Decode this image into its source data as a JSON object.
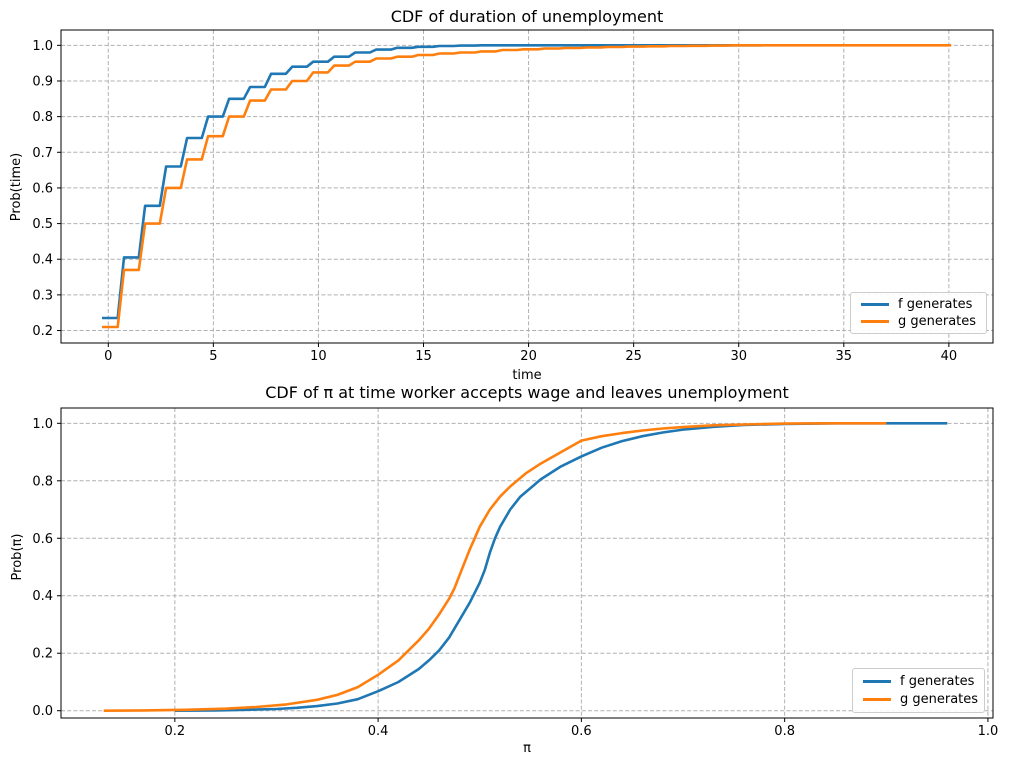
{
  "figure": {
    "background": "#ffffff",
    "grid_color": "#b0b0b0",
    "spine_color": "#000000",
    "text_color": "#000000",
    "series_colors": {
      "f": "#1f77b4",
      "g": "#ff7f0e"
    }
  },
  "chart_data": [
    {
      "type": "line",
      "line_style": "step",
      "title": "CDF of duration of unemployment",
      "xlabel": "time",
      "ylabel": "Prob(time)",
      "xlim": [
        -2.25,
        42.1
      ],
      "ylim": [
        0.165,
        1.043
      ],
      "xticks": [
        0,
        5,
        10,
        15,
        20,
        25,
        30,
        35,
        40
      ],
      "xtick_labels": [
        "0",
        "5",
        "10",
        "15",
        "20",
        "25",
        "30",
        "35",
        "40"
      ],
      "yticks": [
        0.2,
        0.3,
        0.4,
        0.5,
        0.6,
        0.7,
        0.8,
        0.9,
        1.0
      ],
      "ytick_labels": [
        "0.2",
        "0.3",
        "0.4",
        "0.5",
        "0.6",
        "0.7",
        "0.8",
        "0.9",
        "1.0"
      ],
      "grid": true,
      "legend_position": "lower right",
      "series": [
        {
          "name": "f generates",
          "color": "#1f77b4",
          "x": [
            0,
            1,
            2,
            3,
            4,
            5,
            6,
            7,
            8,
            9,
            10,
            11,
            12,
            13,
            14,
            15,
            16,
            17,
            18,
            19,
            20,
            21,
            22,
            23,
            24,
            25,
            26,
            27,
            28,
            29,
            30,
            31
          ],
          "y": [
            0.235,
            0.405,
            0.55,
            0.66,
            0.74,
            0.8,
            0.85,
            0.883,
            0.92,
            0.94,
            0.954,
            0.968,
            0.98,
            0.988,
            0.993,
            0.996,
            0.998,
            0.9993,
            1,
            1,
            1,
            1,
            1,
            1,
            1,
            1,
            1,
            1,
            1,
            1,
            1,
            1
          ]
        },
        {
          "name": "g generates",
          "color": "#ff7f0e",
          "x": [
            0,
            1,
            2,
            3,
            4,
            5,
            6,
            7,
            8,
            9,
            10,
            11,
            12,
            13,
            14,
            15,
            16,
            17,
            18,
            19,
            20,
            21,
            22,
            23,
            24,
            25,
            26,
            27,
            28,
            29,
            30,
            31,
            32,
            33,
            34,
            35,
            36,
            37,
            38,
            39,
            40
          ],
          "y": [
            0.21,
            0.37,
            0.5,
            0.6,
            0.68,
            0.745,
            0.8,
            0.845,
            0.876,
            0.9,
            0.924,
            0.943,
            0.954,
            0.963,
            0.968,
            0.973,
            0.977,
            0.98,
            0.983,
            0.987,
            0.989,
            0.991,
            0.9925,
            0.994,
            0.9953,
            0.9963,
            0.9972,
            0.998,
            0.9987,
            0.9993,
            1,
            1,
            1,
            1,
            1,
            1,
            1,
            1,
            1,
            1,
            1
          ]
        }
      ]
    },
    {
      "type": "line",
      "line_style": "smooth",
      "title": "CDF of π at time worker accepts wage and leaves unemployment",
      "xlabel": "π",
      "ylabel": "Prob(π)",
      "xlim": [
        0.088,
        1.005
      ],
      "ylim": [
        -0.0254,
        1.0533
      ],
      "xticks": [
        0.2,
        0.4,
        0.6,
        0.8,
        1.0
      ],
      "xtick_labels": [
        "0.2",
        "0.4",
        "0.6",
        "0.8",
        "1.0"
      ],
      "yticks": [
        0.0,
        0.2,
        0.4,
        0.6,
        0.8,
        1.0
      ],
      "ytick_labels": [
        "0.0",
        "0.2",
        "0.4",
        "0.6",
        "0.8",
        "1.0"
      ],
      "grid": true,
      "legend_position": "lower right",
      "series": [
        {
          "name": "f generates",
          "color": "#1f77b4",
          "x": [
            0.2,
            0.24,
            0.27,
            0.3,
            0.32,
            0.34,
            0.36,
            0.38,
            0.4,
            0.42,
            0.44,
            0.45,
            0.46,
            0.47,
            0.48,
            0.49,
            0.5,
            0.505,
            0.51,
            0.515,
            0.52,
            0.53,
            0.54,
            0.55,
            0.56,
            0.58,
            0.6,
            0.62,
            0.64,
            0.66,
            0.68,
            0.7,
            0.73,
            0.76,
            0.8,
            0.85,
            0.9,
            0.96
          ],
          "y": [
            0,
            0.001,
            0.003,
            0.006,
            0.01,
            0.016,
            0.025,
            0.04,
            0.068,
            0.1,
            0.145,
            0.175,
            0.21,
            0.255,
            0.315,
            0.375,
            0.445,
            0.49,
            0.55,
            0.6,
            0.64,
            0.7,
            0.745,
            0.775,
            0.805,
            0.85,
            0.885,
            0.915,
            0.938,
            0.955,
            0.968,
            0.978,
            0.988,
            0.994,
            0.998,
            1,
            1,
            1
          ]
        },
        {
          "name": "g generates",
          "color": "#ff7f0e",
          "x": [
            0.13,
            0.17,
            0.21,
            0.25,
            0.28,
            0.31,
            0.34,
            0.36,
            0.38,
            0.4,
            0.42,
            0.44,
            0.45,
            0.46,
            0.47,
            0.475,
            0.48,
            0.49,
            0.495,
            0.5,
            0.51,
            0.52,
            0.53,
            0.545,
            0.56,
            0.58,
            0.6,
            0.62,
            0.64,
            0.66,
            0.68,
            0.7,
            0.73,
            0.76,
            0.8,
            0.85,
            0.9
          ],
          "y": [
            0,
            0.001,
            0.003,
            0.007,
            0.013,
            0.022,
            0.038,
            0.055,
            0.082,
            0.125,
            0.175,
            0.245,
            0.285,
            0.335,
            0.39,
            0.425,
            0.47,
            0.56,
            0.6,
            0.64,
            0.7,
            0.745,
            0.78,
            0.825,
            0.86,
            0.9,
            0.94,
            0.955,
            0.966,
            0.975,
            0.982,
            0.987,
            0.993,
            0.996,
            0.999,
            1,
            1
          ]
        }
      ]
    }
  ]
}
